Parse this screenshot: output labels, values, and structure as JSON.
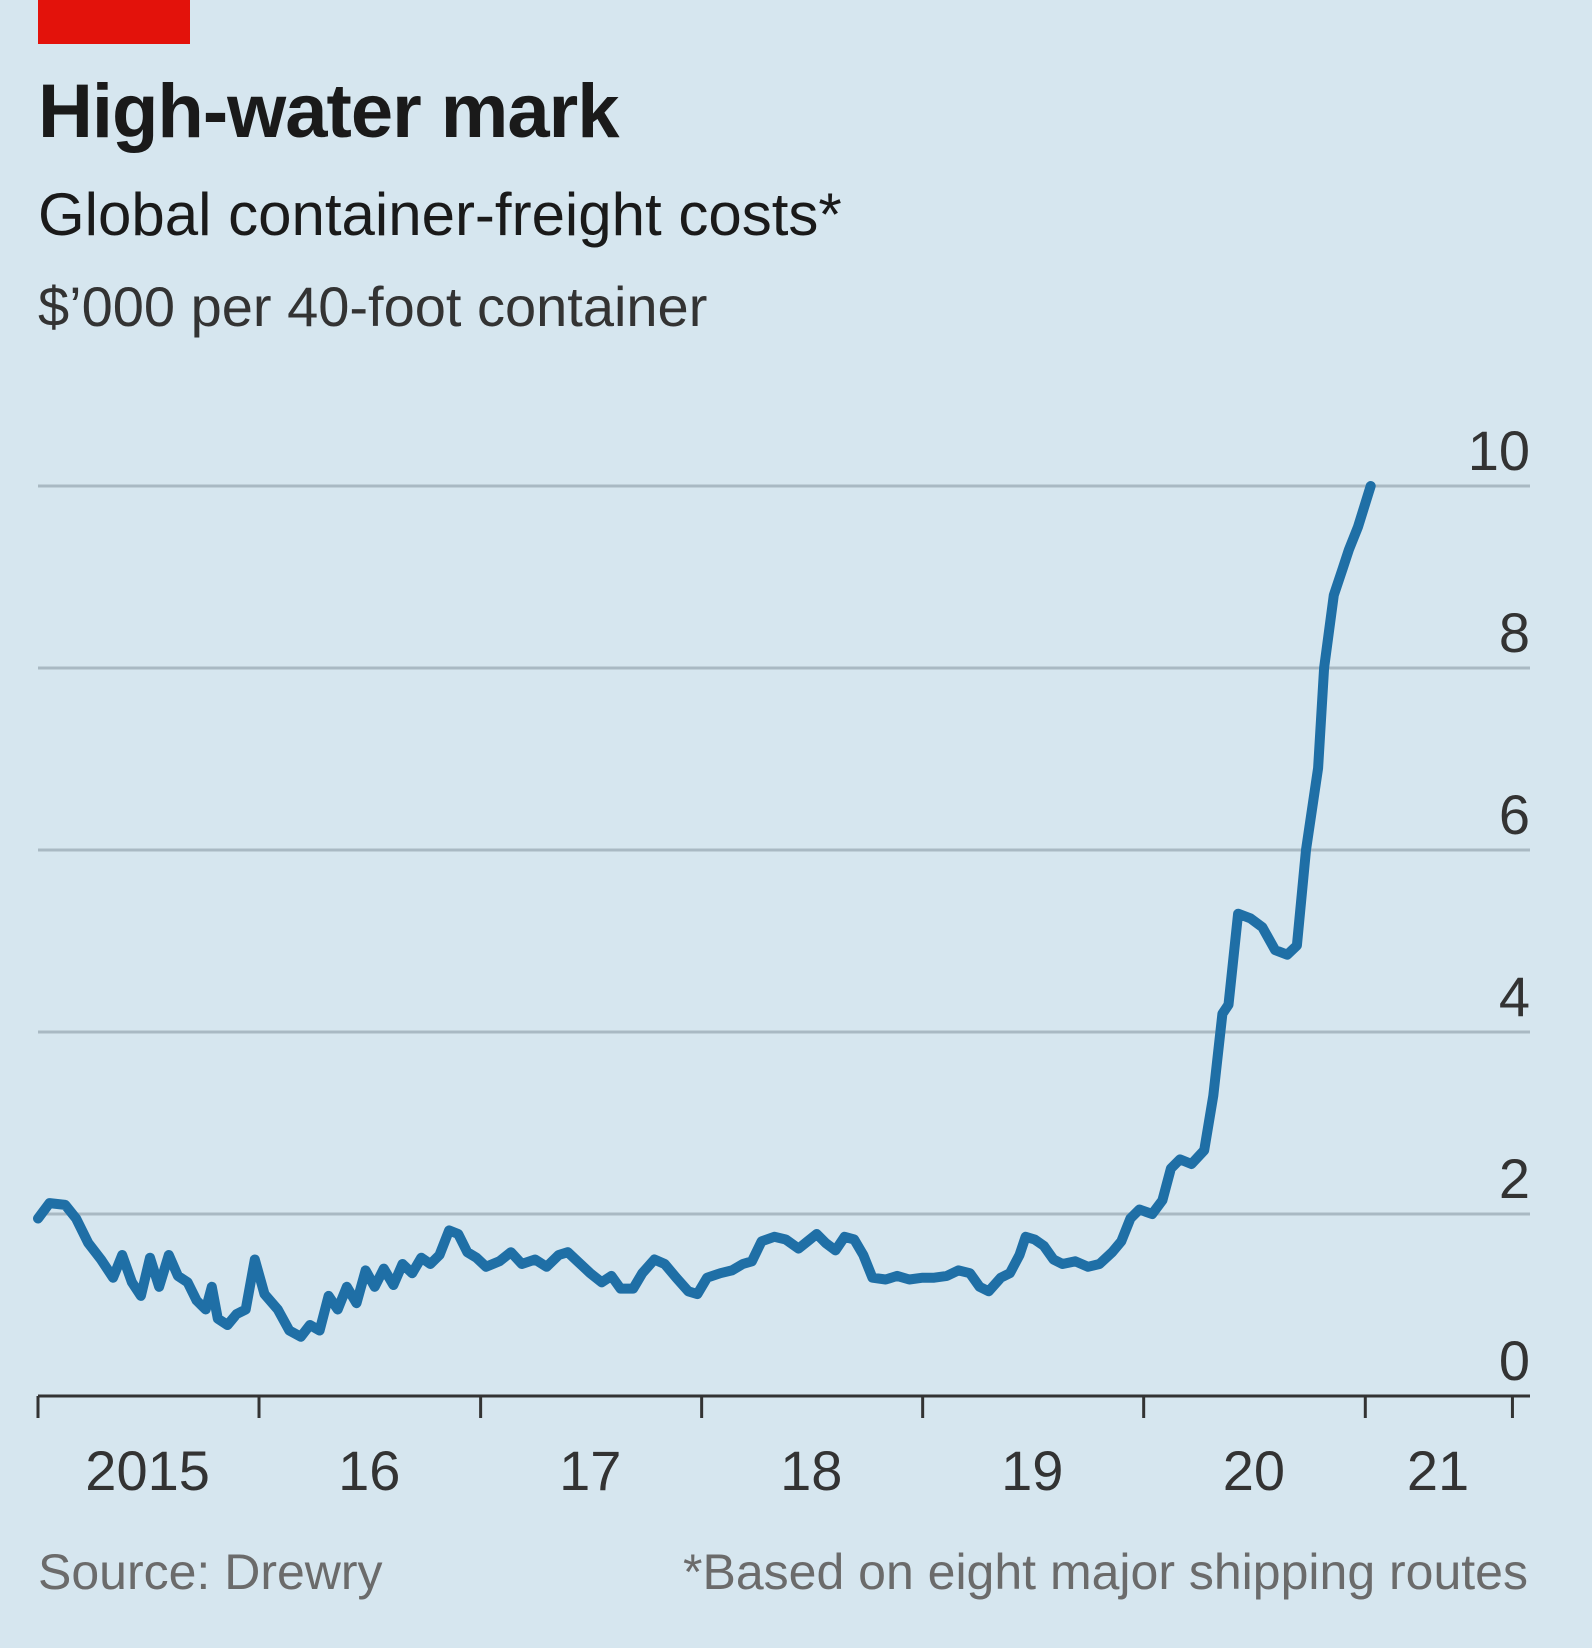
{
  "header": {
    "title": "High-water mark",
    "subtitle": "Global container-freight costs*",
    "unit": "$’000 per 40-foot container"
  },
  "footer": {
    "source": "Source: Drewry",
    "note": "*Based on eight major shipping routes"
  },
  "colors": {
    "background": "#d6e6ef",
    "accent": "#e3120b",
    "line": "#1f6fa6",
    "grid": "#a9b9c3",
    "axis": "#333333"
  },
  "chart_data": {
    "type": "line",
    "title": "High-water mark",
    "subtitle": "Global container-freight costs*",
    "ylabel": "$’000 per 40-foot container",
    "xlabel": "",
    "ylim": [
      0,
      10
    ],
    "xlim": [
      "2015-01-01",
      "2021-09-30"
    ],
    "yticks": [
      0,
      2,
      4,
      6,
      8,
      10
    ],
    "ytick_labels": [
      "0",
      "2",
      "4",
      "6",
      "8",
      "10"
    ],
    "xticks": [
      "2015-01-01",
      "2016-01-01",
      "2017-01-01",
      "2018-01-01",
      "2019-01-01",
      "2020-01-01",
      "2021-01-01",
      "2021-09-01"
    ],
    "xtick_labels": [
      {
        "label": "2015",
        "at": "2015-07-01"
      },
      {
        "label": "16",
        "at": "2016-07-01"
      },
      {
        "label": "17",
        "at": "2017-07-01"
      },
      {
        "label": "18",
        "at": "2018-07-01"
      },
      {
        "label": "19",
        "at": "2019-07-01"
      },
      {
        "label": "20",
        "at": "2020-07-01"
      },
      {
        "label": "21",
        "at": "2021-05-01"
      }
    ],
    "grid": true,
    "legend": "none",
    "series": [
      {
        "values": [
          [
            "2015-01-01",
            1.95
          ],
          [
            "2015-01-20",
            2.12
          ],
          [
            "2015-02-15",
            2.1
          ],
          [
            "2015-03-05",
            1.95
          ],
          [
            "2015-03-25",
            1.68
          ],
          [
            "2015-04-15",
            1.5
          ],
          [
            "2015-05-05",
            1.3
          ],
          [
            "2015-05-20",
            1.55
          ],
          [
            "2015-06-05",
            1.25
          ],
          [
            "2015-06-20",
            1.1
          ],
          [
            "2015-07-05",
            1.52
          ],
          [
            "2015-07-20",
            1.2
          ],
          [
            "2015-08-05",
            1.55
          ],
          [
            "2015-08-20",
            1.32
          ],
          [
            "2015-09-05",
            1.25
          ],
          [
            "2015-09-20",
            1.05
          ],
          [
            "2015-10-05",
            0.95
          ],
          [
            "2015-10-15",
            1.2
          ],
          [
            "2015-10-25",
            0.85
          ],
          [
            "2015-11-10",
            0.78
          ],
          [
            "2015-11-25",
            0.9
          ],
          [
            "2015-12-10",
            0.95
          ],
          [
            "2015-12-25",
            1.5
          ],
          [
            "2016-01-10",
            1.12
          ],
          [
            "2016-02-01",
            0.95
          ],
          [
            "2016-02-20",
            0.72
          ],
          [
            "2016-03-10",
            0.65
          ],
          [
            "2016-03-25",
            0.78
          ],
          [
            "2016-04-10",
            0.72
          ],
          [
            "2016-04-25",
            1.1
          ],
          [
            "2016-05-10",
            0.95
          ],
          [
            "2016-05-25",
            1.2
          ],
          [
            "2016-06-10",
            1.02
          ],
          [
            "2016-06-25",
            1.38
          ],
          [
            "2016-07-10",
            1.2
          ],
          [
            "2016-07-25",
            1.4
          ],
          [
            "2016-08-10",
            1.22
          ],
          [
            "2016-08-25",
            1.45
          ],
          [
            "2016-09-10",
            1.35
          ],
          [
            "2016-09-25",
            1.52
          ],
          [
            "2016-10-10",
            1.45
          ],
          [
            "2016-10-25",
            1.55
          ],
          [
            "2016-11-10",
            1.82
          ],
          [
            "2016-11-25",
            1.78
          ],
          [
            "2016-12-10",
            1.58
          ],
          [
            "2016-12-25",
            1.52
          ],
          [
            "2017-01-10",
            1.42
          ],
          [
            "2017-02-01",
            1.48
          ],
          [
            "2017-02-20",
            1.58
          ],
          [
            "2017-03-10",
            1.45
          ],
          [
            "2017-04-01",
            1.5
          ],
          [
            "2017-04-20",
            1.42
          ],
          [
            "2017-05-10",
            1.55
          ],
          [
            "2017-05-25",
            1.58
          ],
          [
            "2017-06-10",
            1.48
          ],
          [
            "2017-07-01",
            1.35
          ],
          [
            "2017-07-20",
            1.25
          ],
          [
            "2017-08-05",
            1.32
          ],
          [
            "2017-08-20",
            1.18
          ],
          [
            "2017-09-10",
            1.18
          ],
          [
            "2017-09-25",
            1.35
          ],
          [
            "2017-10-15",
            1.5
          ],
          [
            "2017-11-01",
            1.45
          ],
          [
            "2017-11-20",
            1.3
          ],
          [
            "2017-12-10",
            1.15
          ],
          [
            "2017-12-25",
            1.12
          ],
          [
            "2018-01-10",
            1.3
          ],
          [
            "2018-02-01",
            1.35
          ],
          [
            "2018-02-20",
            1.38
          ],
          [
            "2018-03-10",
            1.45
          ],
          [
            "2018-03-25",
            1.48
          ],
          [
            "2018-04-10",
            1.7
          ],
          [
            "2018-05-01",
            1.75
          ],
          [
            "2018-05-20",
            1.72
          ],
          [
            "2018-06-10",
            1.62
          ],
          [
            "2018-06-25",
            1.7
          ],
          [
            "2018-07-10",
            1.78
          ],
          [
            "2018-07-25",
            1.68
          ],
          [
            "2018-08-10",
            1.6
          ],
          [
            "2018-08-25",
            1.75
          ],
          [
            "2018-09-10",
            1.72
          ],
          [
            "2018-09-25",
            1.55
          ],
          [
            "2018-10-10",
            1.3
          ],
          [
            "2018-11-01",
            1.28
          ],
          [
            "2018-11-20",
            1.32
          ],
          [
            "2018-12-10",
            1.28
          ],
          [
            "2019-01-01",
            1.3
          ],
          [
            "2019-01-20",
            1.3
          ],
          [
            "2019-02-10",
            1.32
          ],
          [
            "2019-03-01",
            1.38
          ],
          [
            "2019-03-20",
            1.35
          ],
          [
            "2019-04-05",
            1.2
          ],
          [
            "2019-04-20",
            1.15
          ],
          [
            "2019-05-10",
            1.3
          ],
          [
            "2019-05-25",
            1.35
          ],
          [
            "2019-06-10",
            1.55
          ],
          [
            "2019-06-20",
            1.75
          ],
          [
            "2019-07-05",
            1.72
          ],
          [
            "2019-07-20",
            1.65
          ],
          [
            "2019-08-05",
            1.5
          ],
          [
            "2019-08-20",
            1.45
          ],
          [
            "2019-09-10",
            1.48
          ],
          [
            "2019-10-01",
            1.42
          ],
          [
            "2019-10-20",
            1.45
          ],
          [
            "2019-11-10",
            1.58
          ],
          [
            "2019-11-25",
            1.7
          ],
          [
            "2019-12-10",
            1.95
          ],
          [
            "2019-12-25",
            2.05
          ],
          [
            "2020-01-15",
            2.0
          ],
          [
            "2020-02-01",
            2.15
          ],
          [
            "2020-02-15",
            2.5
          ],
          [
            "2020-03-01",
            2.6
          ],
          [
            "2020-03-20",
            2.55
          ],
          [
            "2020-04-10",
            2.7
          ],
          [
            "2020-04-25",
            3.3
          ],
          [
            "2020-05-10",
            4.2
          ],
          [
            "2020-05-20",
            4.3
          ],
          [
            "2020-06-05",
            5.3
          ],
          [
            "2020-06-25",
            5.25
          ],
          [
            "2020-07-15",
            5.15
          ],
          [
            "2020-08-05",
            4.9
          ],
          [
            "2020-08-25",
            4.85
          ],
          [
            "2020-09-10",
            4.95
          ],
          [
            "2020-09-25",
            6.0
          ],
          [
            "2020-10-15",
            6.9
          ],
          [
            "2020-10-25",
            8.0
          ],
          [
            "2020-11-10",
            8.8
          ],
          [
            "2020-11-25",
            9.1
          ],
          [
            "2020-12-05",
            9.3
          ],
          [
            "2020-12-20",
            9.55
          ],
          [
            "2021-01-10",
            10.0
          ]
        ]
      }
    ]
  }
}
